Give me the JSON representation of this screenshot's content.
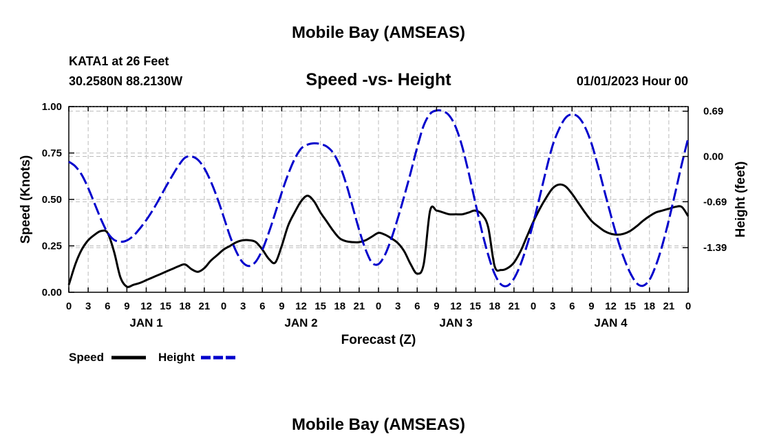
{
  "page": {
    "title": "Mobile Bay (AMSEAS)",
    "title_repeat": "Mobile Bay (AMSEAS)"
  },
  "station": {
    "name": "KATA1 at 26 Feet",
    "coords": "30.2580N  88.2130W",
    "datetime": "01/01/2023 Hour 00"
  },
  "chart_data": {
    "type": "line",
    "title": "Speed -vs- Height",
    "xlabel": "Forecast (Z)",
    "ylabel": "Speed (Knots)",
    "y2label": "Height (feet)",
    "grid": true,
    "x_range_hours": [
      0,
      96
    ],
    "x_tick_labels": [
      "0",
      "3",
      "6",
      "9",
      "12",
      "15",
      "18",
      "21",
      "0",
      "3",
      "6",
      "9",
      "12",
      "15",
      "18",
      "21",
      "0",
      "3",
      "6",
      "9",
      "12",
      "15",
      "18",
      "21",
      "0",
      "3",
      "6",
      "9",
      "12",
      "15",
      "18",
      "21",
      "0"
    ],
    "date_labels": [
      {
        "label": "JAN 1",
        "hour": 12
      },
      {
        "label": "JAN 2",
        "hour": 36
      },
      {
        "label": "JAN 3",
        "hour": 60
      },
      {
        "label": "JAN 4",
        "hour": 84
      }
    ],
    "ylim": [
      0,
      1.0
    ],
    "y_ticks": [
      0,
      0.25,
      0.5,
      0.75,
      1.0
    ],
    "y_tick_labels": [
      "0.00",
      "0.25",
      "0.50",
      "0.75",
      "1.00"
    ],
    "y2lim": [
      -2.07,
      0.76
    ],
    "y2_ticks": [
      0.69,
      0.0,
      -0.69,
      -1.39
    ],
    "y2_tick_labels": [
      "0.69",
      "0.00",
      "-0.69",
      "-1.39"
    ],
    "series": [
      {
        "name": "Speed",
        "axis": "left",
        "color": "#000000",
        "style": "solid",
        "x": [
          0,
          1,
          2,
          3,
          4,
          5,
          6,
          7,
          8,
          9,
          10,
          11,
          12,
          13,
          14,
          15,
          16,
          17,
          18,
          19,
          20,
          21,
          22,
          23,
          24,
          25,
          26,
          27,
          28,
          29,
          30,
          31,
          32,
          33,
          34,
          35,
          36,
          37,
          38,
          39,
          40,
          41,
          42,
          43,
          44,
          45,
          46,
          47,
          48,
          49,
          50,
          51,
          52,
          53,
          54,
          55,
          56,
          57,
          58,
          59,
          60,
          61,
          62,
          63,
          64,
          65,
          66,
          67,
          68,
          69,
          70,
          71,
          72,
          73,
          74,
          75,
          76,
          77,
          78,
          79,
          80,
          81,
          82,
          83,
          84,
          85,
          86,
          87,
          88,
          89,
          90,
          91,
          92,
          93,
          94,
          95,
          96
        ],
        "values": [
          0.04,
          0.15,
          0.23,
          0.28,
          0.31,
          0.33,
          0.32,
          0.22,
          0.08,
          0.03,
          0.04,
          0.05,
          0.065,
          0.08,
          0.095,
          0.11,
          0.125,
          0.14,
          0.15,
          0.125,
          0.11,
          0.13,
          0.17,
          0.2,
          0.23,
          0.25,
          0.27,
          0.28,
          0.28,
          0.27,
          0.23,
          0.18,
          0.16,
          0.25,
          0.36,
          0.43,
          0.49,
          0.52,
          0.49,
          0.43,
          0.38,
          0.33,
          0.29,
          0.275,
          0.27,
          0.27,
          0.28,
          0.3,
          0.32,
          0.31,
          0.29,
          0.265,
          0.22,
          0.15,
          0.1,
          0.15,
          0.44,
          0.44,
          0.43,
          0.42,
          0.42,
          0.42,
          0.43,
          0.44,
          0.42,
          0.35,
          0.14,
          0.12,
          0.13,
          0.16,
          0.22,
          0.3,
          0.38,
          0.45,
          0.51,
          0.56,
          0.58,
          0.57,
          0.53,
          0.48,
          0.43,
          0.385,
          0.355,
          0.33,
          0.315,
          0.31,
          0.315,
          0.33,
          0.355,
          0.385,
          0.41,
          0.43,
          0.44,
          0.45,
          0.46,
          0.46,
          0.41
        ]
      },
      {
        "name": "Height",
        "axis": "right",
        "color": "#0000cc",
        "style": "dashed",
        "x": [
          0,
          1,
          2,
          3,
          4,
          5,
          6,
          7,
          8,
          9,
          10,
          11,
          12,
          13,
          14,
          15,
          16,
          17,
          18,
          19,
          20,
          21,
          22,
          23,
          24,
          25,
          26,
          27,
          28,
          29,
          30,
          31,
          32,
          33,
          34,
          35,
          36,
          37,
          38,
          39,
          40,
          41,
          42,
          43,
          44,
          45,
          46,
          47,
          48,
          49,
          50,
          51,
          52,
          53,
          54,
          55,
          56,
          57,
          58,
          59,
          60,
          61,
          62,
          63,
          64,
          65,
          66,
          67,
          68,
          69,
          70,
          71,
          72,
          73,
          74,
          75,
          76,
          77,
          78,
          79,
          80,
          81,
          82,
          83,
          84,
          85,
          86,
          87,
          88,
          89,
          90,
          91,
          92,
          93,
          94,
          95,
          96
        ],
        "values": [
          -0.08,
          -0.15,
          -0.28,
          -0.48,
          -0.72,
          -0.96,
          -1.16,
          -1.27,
          -1.3,
          -1.28,
          -1.21,
          -1.1,
          -0.97,
          -0.82,
          -0.65,
          -0.47,
          -0.3,
          -0.14,
          -0.02,
          0.0,
          -0.05,
          -0.18,
          -0.38,
          -0.63,
          -0.92,
          -1.22,
          -1.46,
          -1.62,
          -1.67,
          -1.6,
          -1.42,
          -1.16,
          -0.86,
          -0.55,
          -0.27,
          -0.04,
          0.12,
          0.18,
          0.2,
          0.19,
          0.15,
          0.05,
          -0.14,
          -0.42,
          -0.77,
          -1.12,
          -1.42,
          -1.62,
          -1.64,
          -1.5,
          -1.25,
          -0.94,
          -0.6,
          -0.24,
          0.14,
          0.47,
          0.65,
          0.7,
          0.69,
          0.62,
          0.44,
          0.14,
          -0.26,
          -0.7,
          -1.13,
          -1.5,
          -1.79,
          -1.95,
          -1.97,
          -1.86,
          -1.65,
          -1.36,
          -1.01,
          -0.61,
          -0.2,
          0.17,
          0.42,
          0.59,
          0.64,
          0.6,
          0.45,
          0.2,
          -0.14,
          -0.52,
          -0.89,
          -1.24,
          -1.54,
          -1.77,
          -1.93,
          -1.97,
          -1.88,
          -1.66,
          -1.35,
          -0.97,
          -0.55,
          -0.12,
          0.28
        ]
      }
    ],
    "legend": {
      "position": "bottom-left",
      "entries": [
        {
          "label": "Speed",
          "color": "#000000",
          "style": "solid"
        },
        {
          "label": "Height",
          "color": "#0000cc",
          "style": "dashed"
        }
      ]
    }
  }
}
